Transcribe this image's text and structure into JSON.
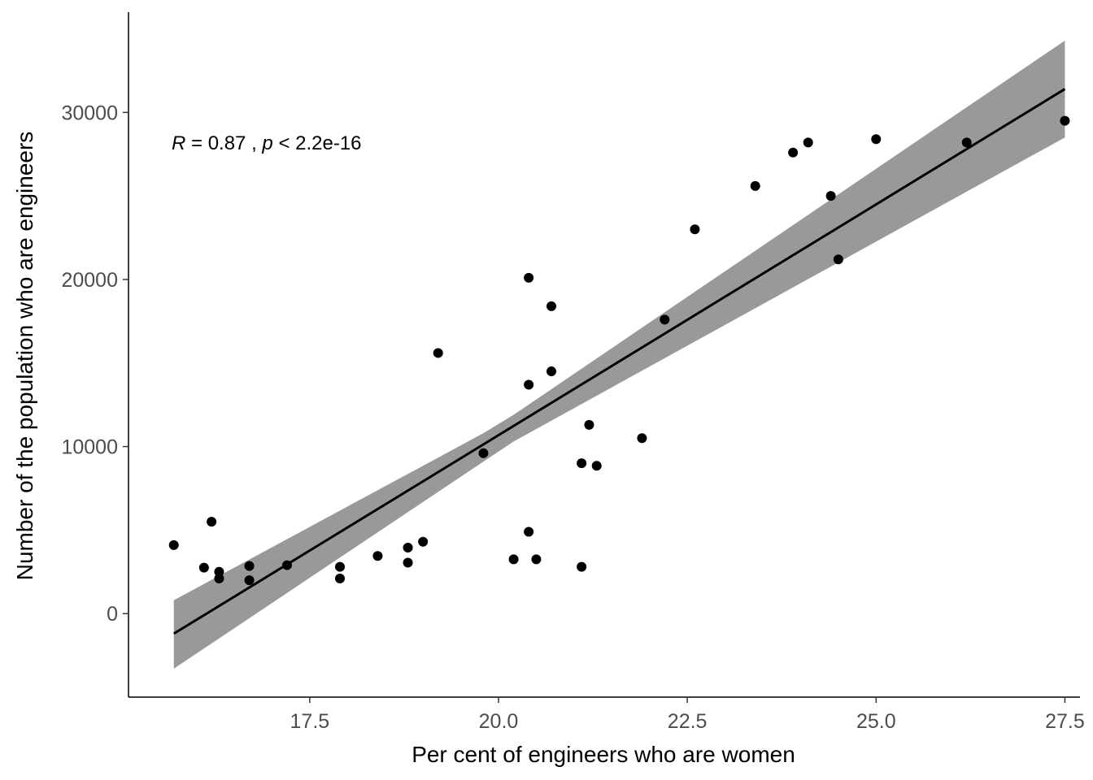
{
  "chart_data": {
    "type": "scatter",
    "title": "",
    "xlabel": "Per cent of engineers who are women",
    "ylabel": "Number of the population who are engineers",
    "xlim": [
      15.1,
      27.7
    ],
    "ylim": [
      -5000,
      36000
    ],
    "x_ticks": [
      17.5,
      20.0,
      22.5,
      25.0,
      27.5
    ],
    "x_tick_labels": [
      "17.5",
      "20.0",
      "22.5",
      "25.0",
      "27.5"
    ],
    "y_ticks": [
      0,
      10000,
      20000,
      30000
    ],
    "y_tick_labels": [
      "0",
      "10000",
      "20000",
      "30000"
    ],
    "grid": false,
    "annotation": {
      "r_label": "R",
      "r_text": " = 0.87 , ",
      "p_label": "p",
      "p_text": " < 2.2e-16"
    },
    "points": [
      {
        "x": 15.7,
        "y": 4100
      },
      {
        "x": 16.1,
        "y": 2750
      },
      {
        "x": 16.2,
        "y": 5500
      },
      {
        "x": 16.3,
        "y": 2500
      },
      {
        "x": 16.3,
        "y": 2100
      },
      {
        "x": 16.7,
        "y": 2850
      },
      {
        "x": 16.7,
        "y": 2000
      },
      {
        "x": 17.2,
        "y": 2900
      },
      {
        "x": 17.9,
        "y": 2800
      },
      {
        "x": 17.9,
        "y": 2100
      },
      {
        "x": 18.4,
        "y": 3450
      },
      {
        "x": 18.8,
        "y": 3950
      },
      {
        "x": 18.8,
        "y": 3050
      },
      {
        "x": 19.0,
        "y": 4300
      },
      {
        "x": 19.2,
        "y": 15600
      },
      {
        "x": 19.8,
        "y": 9600
      },
      {
        "x": 20.2,
        "y": 3250
      },
      {
        "x": 20.4,
        "y": 20100
      },
      {
        "x": 20.4,
        "y": 13700
      },
      {
        "x": 20.4,
        "y": 4900
      },
      {
        "x": 20.5,
        "y": 3250
      },
      {
        "x": 20.7,
        "y": 18400
      },
      {
        "x": 20.7,
        "y": 14500
      },
      {
        "x": 21.1,
        "y": 9000
      },
      {
        "x": 21.1,
        "y": 2800
      },
      {
        "x": 21.2,
        "y": 11300
      },
      {
        "x": 21.3,
        "y": 8850
      },
      {
        "x": 21.9,
        "y": 10500
      },
      {
        "x": 22.2,
        "y": 17600
      },
      {
        "x": 22.6,
        "y": 23000
      },
      {
        "x": 23.4,
        "y": 25600
      },
      {
        "x": 23.9,
        "y": 27600
      },
      {
        "x": 24.1,
        "y": 28200
      },
      {
        "x": 24.4,
        "y": 25000
      },
      {
        "x": 24.5,
        "y": 21200
      },
      {
        "x": 25.0,
        "y": 28400
      },
      {
        "x": 26.2,
        "y": 28200
      },
      {
        "x": 27.5,
        "y": 29500
      }
    ],
    "regression_line": {
      "x": [
        15.7,
        27.5
      ],
      "y": [
        -1200,
        31400
      ]
    },
    "confidence_band": {
      "x": [
        15.7,
        19.8,
        20.2,
        27.5
      ],
      "upper": [
        800,
        10800,
        11900,
        34300
      ],
      "lower": [
        -3300,
        9100,
        10300,
        28500
      ]
    },
    "colors": {
      "points": "#000000",
      "line": "#000000",
      "band": "#999999",
      "axis": "#000000"
    }
  }
}
